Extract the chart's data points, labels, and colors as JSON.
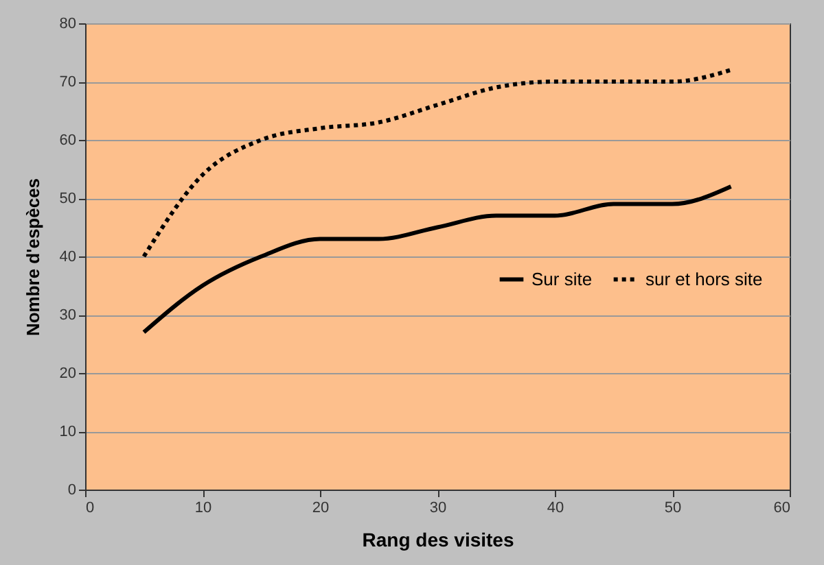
{
  "chart_data": {
    "type": "line",
    "xlabel": "Rang des visites",
    "ylabel": "Nombre d'espèces",
    "x": [
      5,
      10,
      15,
      20,
      25,
      30,
      35,
      40,
      45,
      50,
      55
    ],
    "series": [
      {
        "name": "Sur site",
        "color": "#000000",
        "line_style": "solid",
        "values": [
          27,
          35,
          40,
          43,
          43,
          45,
          47,
          47,
          49,
          49,
          52
        ]
      },
      {
        "name": "sur et hors site",
        "color": "#000000",
        "line_style": "dotted",
        "values": [
          40,
          54,
          60,
          62,
          63,
          66,
          69,
          70,
          70,
          70,
          72
        ]
      }
    ],
    "xlim": [
      0,
      60
    ],
    "xticks": [
      0,
      10,
      20,
      30,
      40,
      50,
      60
    ],
    "ylim": [
      0,
      80
    ],
    "yticks": [
      0,
      10,
      20,
      30,
      40,
      50,
      60,
      70,
      80
    ],
    "grid": "y",
    "legend": "right",
    "marker": "none"
  }
}
